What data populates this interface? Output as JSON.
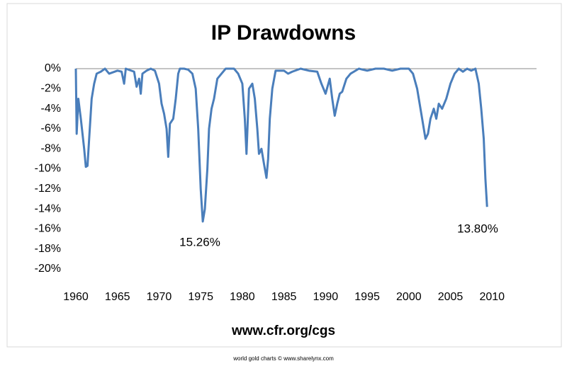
{
  "chart_data": {
    "type": "line",
    "title": "IP Drawdowns",
    "x_label": "www.cfr.org/cgs",
    "footer": "world gold charts © www.sharelynx.com",
    "annotations": [
      "15.26%",
      "13.80%"
    ],
    "color": "#4a7ebb",
    "x": [
      1960.0,
      1960.1,
      1960.3,
      1960.6,
      1961.0,
      1961.2,
      1961.4,
      1961.6,
      1961.9,
      1962.2,
      1962.5,
      1963.0,
      1963.5,
      1964.0,
      1965.0,
      1965.5,
      1965.8,
      1966.0,
      1967.0,
      1967.3,
      1967.6,
      1967.8,
      1968.0,
      1968.5,
      1969.0,
      1969.5,
      1970.0,
      1970.3,
      1970.6,
      1970.9,
      1971.1,
      1971.3,
      1971.7,
      1972.0,
      1972.3,
      1972.5,
      1973.0,
      1973.5,
      1974.0,
      1974.4,
      1974.7,
      1975.0,
      1975.25,
      1975.5,
      1975.8,
      1976.0,
      1976.3,
      1976.6,
      1977.0,
      1977.5,
      1978.0,
      1979.0,
      1979.5,
      1980.0,
      1980.3,
      1980.5,
      1980.8,
      1981.2,
      1981.5,
      1981.8,
      1982.0,
      1982.3,
      1982.6,
      1982.9,
      1983.1,
      1983.3,
      1983.6,
      1984.0,
      1985.0,
      1985.5,
      1986.0,
      1987.0,
      1988.0,
      1989.0,
      1989.5,
      1990.0,
      1990.5,
      1990.8,
      1991.1,
      1991.4,
      1991.7,
      1992.0,
      1992.5,
      1993.0,
      1994.0,
      1995.0,
      1996.0,
      1997.0,
      1998.0,
      1999.0,
      2000.0,
      2000.5,
      2001.0,
      2001.5,
      2002.0,
      2002.3,
      2002.6,
      2003.0,
      2003.3,
      2003.6,
      2004.0,
      2004.5,
      2005.0,
      2005.5,
      2006.0,
      2006.5,
      2007.0,
      2007.5,
      2008.0,
      2008.4,
      2008.7,
      2009.0,
      2009.2,
      2009.4
    ],
    "values": [
      0,
      -6.5,
      -3,
      -5,
      -8,
      -9.8,
      -9.7,
      -7,
      -3,
      -1.5,
      -0.5,
      -0.3,
      0,
      -0.5,
      -0.2,
      -0.3,
      -1.5,
      0,
      -0.3,
      -1.8,
      -1,
      -2.5,
      -0.5,
      -0.2,
      0,
      -0.2,
      -1.5,
      -3.5,
      -4.5,
      -6,
      -8.8,
      -5.5,
      -5,
      -3,
      -0.5,
      0,
      0,
      -0.1,
      -0.5,
      -2,
      -6,
      -12,
      -15.26,
      -14,
      -10,
      -6,
      -4,
      -3,
      -1,
      -0.5,
      0,
      0,
      -0.5,
      -1.5,
      -5,
      -8.5,
      -2,
      -1.5,
      -3,
      -6,
      -8.5,
      -8,
      -9.5,
      -10.9,
      -9,
      -5,
      -2,
      -0.2,
      -0.2,
      -0.5,
      -0.3,
      0,
      -0.2,
      -0.3,
      -1.5,
      -2.5,
      -1,
      -3,
      -4.7,
      -3.5,
      -2.5,
      -2.3,
      -1,
      -0.5,
      0,
      -0.2,
      0,
      0,
      -0.2,
      0,
      0,
      -0.5,
      -2,
      -4.5,
      -7,
      -6.5,
      -5,
      -4,
      -5,
      -3.5,
      -4,
      -3,
      -1.5,
      -0.5,
      0,
      -0.3,
      0,
      -0.2,
      0,
      -1.5,
      -4,
      -7,
      -11,
      -13.8
    ],
    "xlim": [
      1960,
      2015
    ],
    "xticks": [
      1960,
      1965,
      1970,
      1975,
      1980,
      1985,
      1990,
      1995,
      2000,
      2005,
      2010
    ],
    "ylim": [
      -20,
      0
    ],
    "yticks": [
      {
        "value": 0,
        "label": "0%"
      },
      {
        "value": -2,
        "label": "-2%"
      },
      {
        "value": -4,
        "label": "-4%"
      },
      {
        "value": -6,
        "label": "-6%"
      },
      {
        "value": -8,
        "label": "-8%"
      },
      {
        "value": -10,
        "label": "-10%"
      },
      {
        "value": -12,
        "label": "-12%"
      },
      {
        "value": -14,
        "label": "-14%"
      },
      {
        "value": -16,
        "label": "-16%"
      },
      {
        "value": -18,
        "label": "-18%"
      },
      {
        "value": -20,
        "label": "-20%"
      }
    ]
  }
}
